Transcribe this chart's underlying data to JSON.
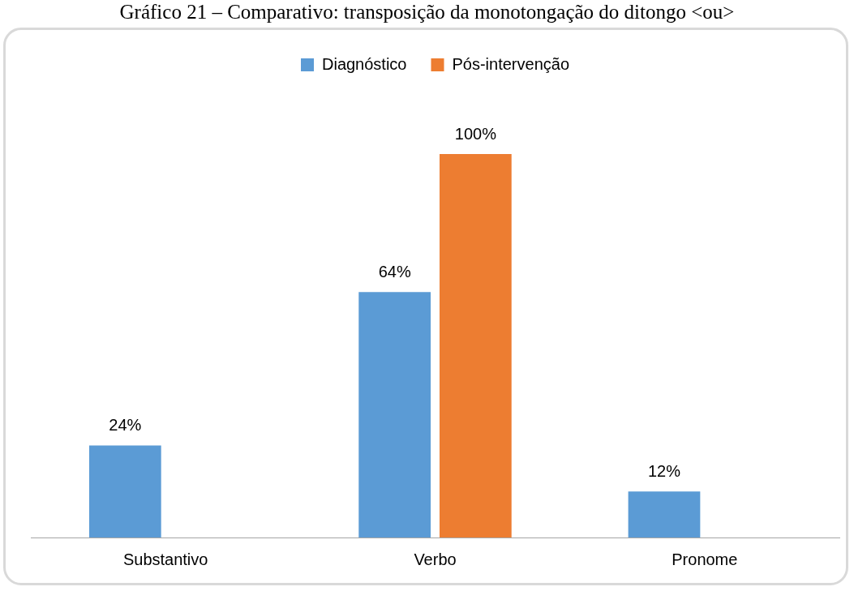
{
  "chart_data": {
    "type": "bar",
    "title": "Gráfico 21 – Comparativo: transposição da monotongação do ditongo <ou>",
    "categories": [
      "Substantivo",
      "Verbo",
      "Pronome"
    ],
    "series": [
      {
        "name": "Diagnóstico",
        "color": "#5b9bd5",
        "values": [
          24,
          64,
          12
        ],
        "value_labels": [
          "24%",
          "64%",
          "12%"
        ]
      },
      {
        "name": "Pós-intervenção",
        "color": "#ed7d31",
        "values": [
          null,
          100,
          null
        ],
        "value_labels": [
          null,
          "100%",
          null
        ]
      }
    ],
    "legend": "top",
    "grid": false
  }
}
